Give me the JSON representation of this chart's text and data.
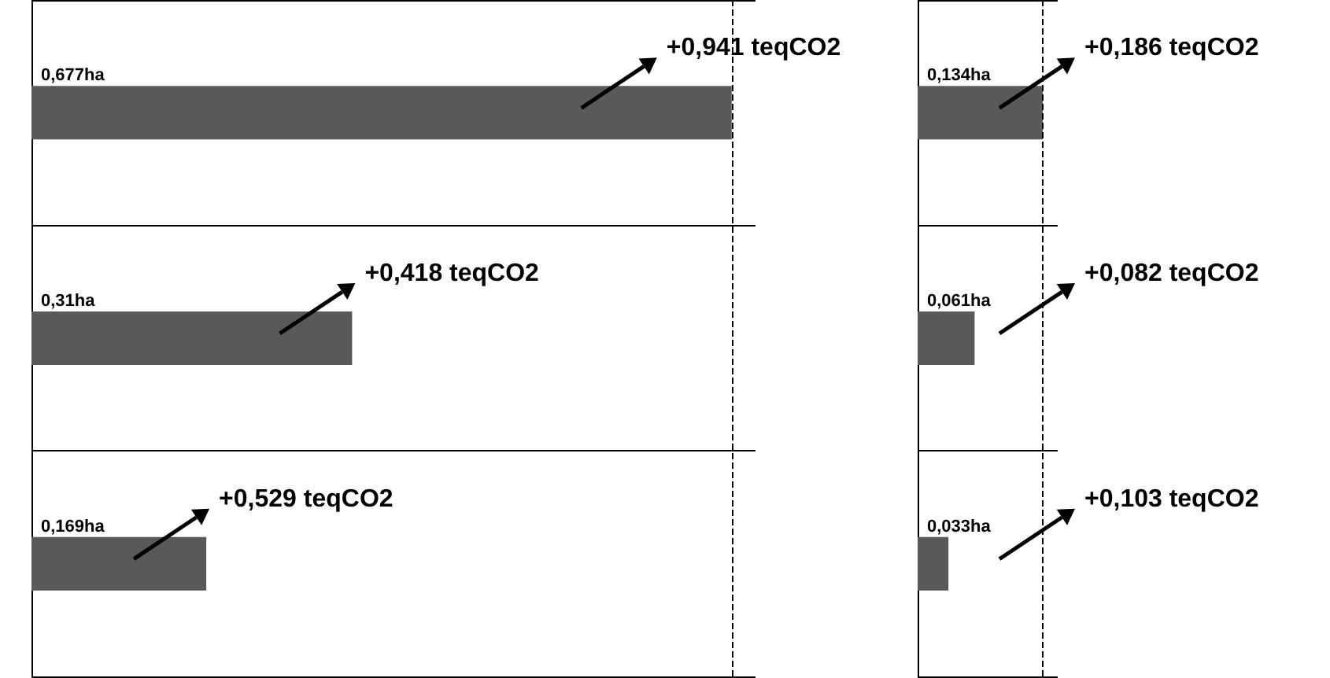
{
  "chart_data": [
    {
      "type": "bar",
      "orientation": "horizontal",
      "categories": [
        null,
        null,
        null
      ],
      "values": [
        0.677,
        0.31,
        0.169
      ],
      "value_labels": [
        "0,677ha",
        "0,31ha",
        "0,169ha"
      ],
      "color": "#595959",
      "annotations": [
        "+0,941 teqCO2",
        "+0,418 teqCO2",
        "+0,529 teqCO2"
      ],
      "ref_lines": [
        {
          "axis": "x",
          "value": 0.677,
          "line_style": "dashed",
          "color": "#000000"
        }
      ],
      "grid": "y",
      "tick_labels": false
    },
    {
      "type": "bar",
      "orientation": "horizontal",
      "categories": [
        null,
        null,
        null
      ],
      "values": [
        0.134,
        0.061,
        0.033
      ],
      "value_labels": [
        "0,134ha",
        "0,061ha",
        "0,033ha"
      ],
      "color": "#595959",
      "annotations": [
        "+0,186 teqCO2",
        "+0,082 teqCO2",
        "+0,103 teqCO2"
      ],
      "ref_lines": [
        {
          "axis": "x",
          "value": 0.134,
          "line_style": "dashed",
          "color": "#000000"
        }
      ],
      "grid": "y",
      "tick_labels": false
    }
  ]
}
